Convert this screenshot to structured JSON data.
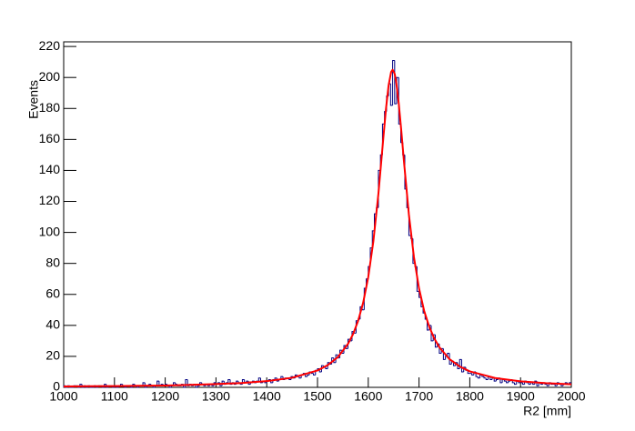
{
  "chart_data": {
    "type": "histogram",
    "x_label": "R2 [mm]",
    "y_label": "Events",
    "color": "#000080",
    "xlim": [
      1000,
      2000
    ],
    "ylim": [
      0,
      223
    ],
    "xticks": [
      1000,
      1100,
      1200,
      1300,
      1400,
      1500,
      1600,
      1700,
      1800,
      1900,
      2000
    ],
    "yticks": [
      0,
      20,
      40,
      60,
      80,
      100,
      120,
      140,
      160,
      180,
      200,
      220
    ],
    "bins": [
      1000,
      1004,
      1008,
      1012,
      1016,
      1020,
      1024,
      1028,
      1032,
      1036,
      1040,
      1044,
      1048,
      1052,
      1056,
      1060,
      1064,
      1068,
      1072,
      1076,
      1080,
      1084,
      1088,
      1092,
      1096,
      1100,
      1104,
      1108,
      1112,
      1116,
      1120,
      1124,
      1128,
      1132,
      1136,
      1140,
      1144,
      1148,
      1152,
      1156,
      1160,
      1164,
      1168,
      1172,
      1176,
      1180,
      1184,
      1188,
      1192,
      1196,
      1200,
      1204,
      1208,
      1212,
      1216,
      1220,
      1224,
      1228,
      1232,
      1236,
      1240,
      1244,
      1248,
      1252,
      1256,
      1260,
      1264,
      1268,
      1272,
      1276,
      1280,
      1284,
      1288,
      1292,
      1296,
      1300,
      1304,
      1308,
      1312,
      1316,
      1320,
      1324,
      1328,
      1332,
      1336,
      1340,
      1344,
      1348,
      1352,
      1356,
      1360,
      1364,
      1368,
      1372,
      1376,
      1380,
      1384,
      1388,
      1392,
      1396,
      1400,
      1404,
      1408,
      1412,
      1416,
      1420,
      1424,
      1428,
      1432,
      1436,
      1440,
      1444,
      1448,
      1452,
      1456,
      1460,
      1464,
      1468,
      1472,
      1476,
      1480,
      1484,
      1488,
      1492,
      1496,
      1500,
      1504,
      1508,
      1512,
      1516,
      1520,
      1524,
      1528,
      1532,
      1536,
      1540,
      1544,
      1548,
      1552,
      1556,
      1560,
      1564,
      1568,
      1572,
      1576,
      1580,
      1584,
      1588,
      1592,
      1596,
      1600,
      1604,
      1608,
      1612,
      1616,
      1620,
      1624,
      1628,
      1632,
      1636,
      1640,
      1644,
      1648,
      1652,
      1656,
      1660,
      1664,
      1668,
      1672,
      1676,
      1680,
      1684,
      1688,
      1692,
      1696,
      1700,
      1704,
      1708,
      1712,
      1716,
      1720,
      1724,
      1728,
      1732,
      1736,
      1740,
      1744,
      1748,
      1752,
      1756,
      1760,
      1764,
      1768,
      1772,
      1776,
      1780,
      1784,
      1788,
      1792,
      1796,
      1800,
      1804,
      1808,
      1812,
      1816,
      1820,
      1824,
      1828,
      1832,
      1836,
      1840,
      1844,
      1848,
      1852,
      1856,
      1860,
      1864,
      1868,
      1872,
      1876,
      1880,
      1884,
      1888,
      1892,
      1896,
      1900,
      1904,
      1908,
      1912,
      1916,
      1920,
      1924,
      1928,
      1932,
      1936,
      1940,
      1944,
      1948,
      1952,
      1956,
      1960,
      1964,
      1968,
      1972,
      1976,
      1980,
      1984,
      1988,
      1992,
      1996,
      2000
    ],
    "values": [
      1,
      0,
      1,
      0,
      0,
      1,
      1,
      0,
      2,
      0,
      1,
      0,
      1,
      0,
      0,
      1,
      0,
      1,
      1,
      0,
      2,
      0,
      1,
      1,
      0,
      1,
      0,
      1,
      2,
      1,
      0,
      1,
      1,
      0,
      2,
      1,
      0,
      1,
      1,
      3,
      0,
      1,
      2,
      1,
      0,
      1,
      4,
      1,
      2,
      1,
      2,
      1,
      0,
      1,
      3,
      2,
      1,
      1,
      2,
      0,
      5,
      1,
      2,
      1,
      2,
      0,
      1,
      3,
      2,
      1,
      2,
      1,
      2,
      1,
      3,
      2,
      3,
      1,
      4,
      2,
      3,
      5,
      2,
      3,
      2,
      4,
      3,
      2,
      5,
      3,
      4,
      2,
      3,
      4,
      3,
      4,
      6,
      3,
      4,
      3,
      4,
      5,
      3,
      5,
      6,
      4,
      5,
      7,
      5,
      6,
      6,
      5,
      7,
      6,
      8,
      7,
      6,
      8,
      9,
      7,
      8,
      10,
      9,
      8,
      11,
      12,
      10,
      14,
      13,
      12,
      16,
      15,
      19,
      16,
      21,
      19,
      24,
      22,
      27,
      25,
      31,
      30,
      36,
      35,
      43,
      44,
      52,
      50,
      64,
      70,
      78,
      90,
      101,
      112,
      116,
      140,
      150,
      170,
      178,
      188,
      196,
      182,
      211,
      183,
      200,
      170,
      158,
      150,
      128,
      116,
      98,
      96,
      80,
      78,
      62,
      58,
      52,
      48,
      44,
      37,
      40,
      30,
      34,
      26,
      28,
      22,
      25,
      18,
      20,
      22,
      15,
      17,
      14,
      16,
      12,
      18,
      10,
      13,
      11,
      9,
      9,
      8,
      10,
      7,
      6,
      8,
      7,
      6,
      5,
      7,
      5,
      6,
      4,
      5,
      6,
      3,
      5,
      4,
      3,
      4,
      5,
      3,
      2,
      4,
      3,
      3,
      2,
      4,
      3,
      2,
      3,
      2,
      4,
      1,
      3,
      2,
      3,
      2,
      1,
      3,
      2,
      2,
      1,
      3,
      2,
      1,
      2,
      3,
      2,
      3
    ],
    "fit": {
      "color": "#ff0000",
      "x": [
        1000,
        1050,
        1100,
        1150,
        1200,
        1250,
        1300,
        1350,
        1400,
        1450,
        1500,
        1520,
        1540,
        1560,
        1570,
        1580,
        1590,
        1600,
        1610,
        1620,
        1630,
        1635,
        1640,
        1645,
        1648,
        1652,
        1655,
        1660,
        1665,
        1670,
        1680,
        1690,
        1700,
        1710,
        1720,
        1730,
        1740,
        1760,
        1780,
        1800,
        1850,
        1900,
        1950,
        2000
      ],
      "y": [
        0.6,
        0.7,
        0.8,
        1.0,
        1.2,
        1.6,
        2.1,
        2.8,
        4.0,
        6.2,
        10.9,
        14.3,
        19.5,
        28.0,
        34.3,
        42.9,
        54.7,
        71.2,
        94.1,
        125.0,
        162.1,
        180.1,
        194.8,
        203.5,
        205,
        202.4,
        197.1,
        183.4,
        165.9,
        146.9,
        111.6,
        84.0,
        63.9,
        49.5,
        39.2,
        31.6,
        25.9,
        18.2,
        13.5,
        10.3,
        6.0,
        3.9,
        2.7,
        2.0
      ]
    }
  }
}
